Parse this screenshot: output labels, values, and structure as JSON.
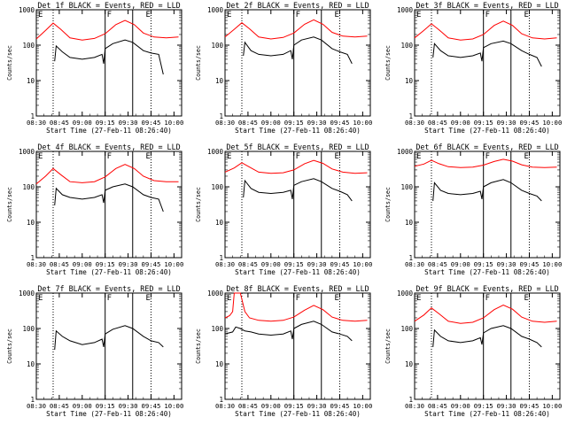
{
  "figure": {
    "x_ticks": [
      "08:30",
      "08:45",
      "09:00",
      "09:15",
      "09:30",
      "09:45",
      "10:00"
    ],
    "y_ticks": [
      "1",
      "10",
      "100",
      "1000"
    ],
    "xlabel": "Start Time (27-Feb-11 08:26:40)",
    "ylabel": "Counts/sec",
    "colors": {
      "events": "#000000",
      "lld": "#ff0000",
      "background": "#ffffff"
    }
  },
  "chart_data": [
    {
      "type": "line",
      "title": "Det 1f BLACK = Events, RED = LLD",
      "region_labels": [
        "E",
        "F",
        "E"
      ],
      "xlabel": "Start Time (27-Feb-11 08:26:40)",
      "ylabel": "Counts/sec",
      "y_scale": "log",
      "ylim": [
        1,
        1000
      ],
      "xlim": [
        "08:30",
        "10:05"
      ],
      "series": [
        {
          "name": "LLD",
          "color": "#ff0000",
          "x": [
            "08:30",
            "08:36",
            "08:41",
            "08:46",
            "08:52",
            "09:00",
            "09:08",
            "09:15",
            "09:22",
            "09:28",
            "09:34",
            "09:40",
            "09:47",
            "09:55",
            "10:03"
          ],
          "values": [
            150,
            260,
            420,
            280,
            160,
            140,
            155,
            210,
            380,
            500,
            380,
            220,
            170,
            160,
            170
          ]
        },
        {
          "name": "Events",
          "color": "#000000",
          "x": [
            "08:42",
            "08:43",
            "08:47",
            "08:52",
            "09:00",
            "09:08",
            "09:13",
            "09:14",
            "09:15",
            "09:20",
            "09:28",
            "09:33",
            "09:40",
            "09:45",
            "09:50",
            "09:53"
          ],
          "values": [
            35,
            95,
            65,
            45,
            40,
            45,
            55,
            30,
            80,
            110,
            140,
            120,
            70,
            60,
            55,
            15
          ]
        }
      ]
    },
    {
      "type": "line",
      "title": "Det 2f BLACK = Events, RED = LLD",
      "region_labels": [
        "E",
        "F",
        "E"
      ],
      "xlabel": "Start Time (27-Feb-11 08:26:40)",
      "ylabel": "Counts/sec",
      "y_scale": "log",
      "ylim": [
        1,
        1000
      ],
      "xlim": [
        "08:30",
        "10:05"
      ],
      "series": [
        {
          "name": "LLD",
          "color": "#ff0000",
          "x": [
            "08:30",
            "08:36",
            "08:41",
            "08:46",
            "08:52",
            "09:00",
            "09:08",
            "09:15",
            "09:22",
            "09:28",
            "09:34",
            "09:40",
            "09:47",
            "09:55",
            "10:03"
          ],
          "values": [
            170,
            280,
            430,
            290,
            170,
            150,
            165,
            220,
            390,
            520,
            390,
            230,
            180,
            170,
            180
          ]
        },
        {
          "name": "Events",
          "color": "#000000",
          "x": [
            "08:42",
            "08:43",
            "08:47",
            "08:52",
            "09:00",
            "09:08",
            "09:13",
            "09:14",
            "09:15",
            "09:20",
            "09:28",
            "09:33",
            "09:40",
            "09:45",
            "09:50",
            "09:53"
          ],
          "values": [
            50,
            120,
            70,
            55,
            50,
            55,
            70,
            40,
            100,
            140,
            170,
            140,
            80,
            65,
            55,
            30
          ]
        }
      ]
    },
    {
      "type": "line",
      "title": "Det 3f BLACK = Events, RED = LLD",
      "region_labels": [
        "E",
        "F",
        "E"
      ],
      "xlabel": "Start Time (27-Feb-11 08:26:40)",
      "ylabel": "Counts/sec",
      "y_scale": "log",
      "ylim": [
        1,
        1000
      ],
      "xlim": [
        "08:30",
        "10:05"
      ],
      "series": [
        {
          "name": "LLD",
          "color": "#ff0000",
          "x": [
            "08:30",
            "08:36",
            "08:41",
            "08:46",
            "08:52",
            "09:00",
            "09:08",
            "09:15",
            "09:22",
            "09:28",
            "09:34",
            "09:40",
            "09:47",
            "09:55",
            "10:03"
          ],
          "values": [
            160,
            260,
            400,
            270,
            160,
            140,
            150,
            200,
            360,
            480,
            360,
            210,
            160,
            150,
            160
          ]
        },
        {
          "name": "Events",
          "color": "#000000",
          "x": [
            "08:42",
            "08:43",
            "08:47",
            "08:52",
            "09:00",
            "09:08",
            "09:13",
            "09:14",
            "09:15",
            "09:20",
            "09:28",
            "09:33",
            "09:40",
            "09:45",
            "09:50",
            "09:53"
          ],
          "values": [
            45,
            110,
            70,
            50,
            45,
            50,
            60,
            35,
            85,
            110,
            130,
            110,
            70,
            55,
            45,
            25
          ]
        }
      ]
    },
    {
      "type": "line",
      "title": "Det 4f BLACK = Events, RED = LLD",
      "region_labels": [
        "E",
        "F",
        "E"
      ],
      "xlabel": "Start Time (27-Feb-11 08:26:40)",
      "ylabel": "Counts/sec",
      "y_scale": "log",
      "ylim": [
        1,
        1000
      ],
      "xlim": [
        "08:30",
        "10:05"
      ],
      "series": [
        {
          "name": "LLD",
          "color": "#ff0000",
          "x": [
            "08:30",
            "08:36",
            "08:41",
            "08:46",
            "08:52",
            "09:00",
            "09:08",
            "09:15",
            "09:22",
            "09:28",
            "09:34",
            "09:40",
            "09:47",
            "09:55",
            "10:03"
          ],
          "values": [
            120,
            200,
            330,
            220,
            140,
            130,
            140,
            190,
            330,
            430,
            330,
            200,
            150,
            140,
            140
          ]
        },
        {
          "name": "Events",
          "color": "#000000",
          "x": [
            "08:42",
            "08:43",
            "08:47",
            "08:52",
            "09:00",
            "09:08",
            "09:13",
            "09:14",
            "09:15",
            "09:20",
            "09:28",
            "09:33",
            "09:40",
            "09:45",
            "09:50",
            "09:53"
          ],
          "values": [
            30,
            90,
            60,
            50,
            45,
            50,
            60,
            35,
            80,
            100,
            120,
            100,
            60,
            50,
            45,
            20
          ]
        }
      ]
    },
    {
      "type": "line",
      "title": "Det 5f BLACK = Events, RED = LLD",
      "region_labels": [
        "E",
        "F",
        "E"
      ],
      "xlabel": "Start Time (27-Feb-11 08:26:40)",
      "ylabel": "Counts/sec",
      "y_scale": "log",
      "ylim": [
        1,
        1000
      ],
      "xlim": [
        "08:30",
        "10:05"
      ],
      "series": [
        {
          "name": "LLD",
          "color": "#ff0000",
          "x": [
            "08:30",
            "08:36",
            "08:41",
            "08:46",
            "08:52",
            "09:00",
            "09:08",
            "09:15",
            "09:22",
            "09:28",
            "09:34",
            "09:40",
            "09:47",
            "09:55",
            "10:03"
          ],
          "values": [
            260,
            340,
            480,
            360,
            260,
            240,
            250,
            300,
            450,
            560,
            460,
            320,
            260,
            240,
            250
          ]
        },
        {
          "name": "Events",
          "color": "#000000",
          "x": [
            "08:42",
            "08:43",
            "08:47",
            "08:52",
            "09:00",
            "09:08",
            "09:13",
            "09:14",
            "09:15",
            "09:20",
            "09:28",
            "09:33",
            "09:40",
            "09:45",
            "09:50",
            "09:53"
          ],
          "values": [
            50,
            150,
            90,
            70,
            65,
            70,
            80,
            45,
            110,
            140,
            170,
            140,
            90,
            75,
            60,
            40
          ]
        }
      ]
    },
    {
      "type": "line",
      "title": "Det 6f BLACK = Events, RED = LLD",
      "region_labels": [
        "E",
        "F",
        "E"
      ],
      "xlabel": "Start Time (27-Feb-11 08:26:40)",
      "ylabel": "Counts/sec",
      "y_scale": "log",
      "ylim": [
        1,
        1000
      ],
      "xlim": [
        "08:30",
        "10:05"
      ],
      "series": [
        {
          "name": "LLD",
          "color": "#ff0000",
          "x": [
            "08:30",
            "08:36",
            "08:41",
            "08:46",
            "08:52",
            "09:00",
            "09:08",
            "09:15",
            "09:22",
            "09:28",
            "09:34",
            "09:40",
            "09:47",
            "09:55",
            "10:03"
          ],
          "values": [
            380,
            440,
            560,
            450,
            370,
            350,
            360,
            410,
            520,
            600,
            530,
            420,
            360,
            350,
            360
          ]
        },
        {
          "name": "Events",
          "color": "#000000",
          "x": [
            "08:42",
            "08:43",
            "08:47",
            "08:52",
            "09:00",
            "09:08",
            "09:13",
            "09:14",
            "09:15",
            "09:20",
            "09:28",
            "09:33",
            "09:40",
            "09:45",
            "09:50",
            "09:53"
          ],
          "values": [
            40,
            130,
            80,
            65,
            60,
            65,
            75,
            45,
            100,
            130,
            160,
            130,
            80,
            65,
            55,
            40
          ]
        }
      ]
    },
    {
      "type": "line",
      "title": "Det 7f BLACK = Events, RED = LLD",
      "region_labels": [
        "E",
        "F",
        "E"
      ],
      "xlabel": "Start Time (27-Feb-11 08:26:40)",
      "ylabel": "Counts/sec",
      "y_scale": "log",
      "ylim": [
        1,
        1000
      ],
      "xlim": [
        "08:30",
        "10:05"
      ],
      "series": [
        {
          "name": "Events",
          "color": "#000000",
          "x": [
            "08:42",
            "08:43",
            "08:47",
            "08:52",
            "09:00",
            "09:08",
            "09:13",
            "09:14",
            "09:15",
            "09:20",
            "09:28",
            "09:33",
            "09:40",
            "09:45",
            "09:50",
            "09:53"
          ],
          "values": [
            25,
            85,
            60,
            45,
            35,
            40,
            50,
            30,
            70,
            95,
            120,
            100,
            60,
            45,
            40,
            30
          ]
        }
      ]
    },
    {
      "type": "line",
      "title": "Det 8f BLACK = Events, RED = LLD",
      "region_labels": [
        "E",
        "F",
        "E"
      ],
      "xlabel": "Start Time (27-Feb-11 08:26:40)",
      "ylabel": "Counts/sec",
      "y_scale": "log",
      "ylim": [
        1,
        1000
      ],
      "xlim": [
        "08:30",
        "10:05"
      ],
      "series": [
        {
          "name": "LLD",
          "color": "#ff0000",
          "x": [
            "08:30",
            "08:33",
            "08:35",
            "08:36",
            "08:38",
            "08:40",
            "08:43",
            "08:46",
            "08:52",
            "09:00",
            "09:08",
            "09:15",
            "09:22",
            "09:28",
            "09:34",
            "09:40",
            "09:47",
            "09:55",
            "10:03"
          ],
          "values": [
            200,
            230,
            300,
            1000,
            1000,
            1000,
            300,
            200,
            170,
            160,
            170,
            210,
            330,
            450,
            340,
            210,
            170,
            160,
            170
          ]
        },
        {
          "name": "Events",
          "color": "#000000",
          "x": [
            "08:30",
            "08:35",
            "08:37",
            "08:40",
            "08:43",
            "08:47",
            "08:52",
            "09:00",
            "09:08",
            "09:13",
            "09:14",
            "09:15",
            "09:20",
            "09:28",
            "09:33",
            "09:40",
            "09:45",
            "09:50",
            "09:53"
          ],
          "values": [
            70,
            80,
            110,
            100,
            85,
            80,
            70,
            65,
            70,
            85,
            50,
            100,
            130,
            160,
            130,
            80,
            70,
            60,
            45
          ]
        }
      ]
    },
    {
      "type": "line",
      "title": "Det 9f BLACK = Events, RED = LLD",
      "region_labels": [
        "E",
        "F",
        "E"
      ],
      "xlabel": "Start Time (27-Feb-11 08:26:40)",
      "ylabel": "Counts/sec",
      "y_scale": "log",
      "ylim": [
        1,
        1000
      ],
      "xlim": [
        "08:30",
        "10:05"
      ],
      "series": [
        {
          "name": "LLD",
          "color": "#ff0000",
          "x": [
            "08:30",
            "08:36",
            "08:41",
            "08:46",
            "08:52",
            "09:00",
            "09:08",
            "09:15",
            "09:22",
            "09:28",
            "09:34",
            "09:40",
            "09:47",
            "09:55",
            "10:03"
          ],
          "values": [
            160,
            240,
            380,
            260,
            160,
            140,
            150,
            200,
            340,
            460,
            350,
            210,
            160,
            150,
            160
          ]
        },
        {
          "name": "Events",
          "color": "#000000",
          "x": [
            "08:42",
            "08:43",
            "08:47",
            "08:52",
            "09:00",
            "09:08",
            "09:13",
            "09:14",
            "09:15",
            "09:20",
            "09:28",
            "09:33",
            "09:40",
            "09:45",
            "09:50",
            "09:53"
          ],
          "values": [
            30,
            90,
            60,
            45,
            40,
            45,
            55,
            35,
            75,
            100,
            120,
            100,
            60,
            50,
            40,
            30
          ]
        }
      ]
    }
  ]
}
